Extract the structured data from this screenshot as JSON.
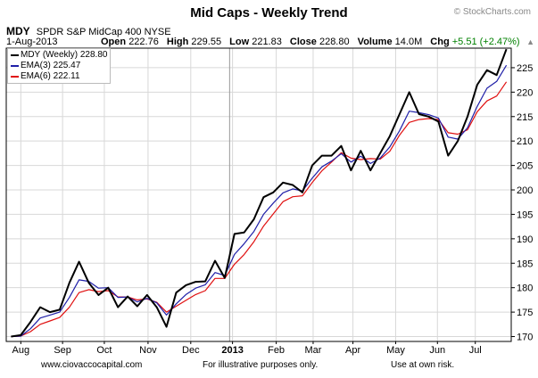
{
  "header": {
    "title": "Mid Caps - Weekly Trend",
    "copyright": "© StockCharts.com",
    "symbol": "MDY",
    "description": "SPDR S&P MidCap 400",
    "exchange": "NYSE",
    "date": "1-Aug-2013",
    "open_label": "Open",
    "open": "222.76",
    "high_label": "High",
    "high": "229.55",
    "low_label": "Low",
    "low": "221.83",
    "close_label": "Close",
    "close": "228.80",
    "volume_label": "Volume",
    "volume": "14.0M",
    "chg_label": "Chg",
    "chg": "+5.51 (+2.47%)",
    "chg_color": "#008000",
    "chg_icon": "triangle-up-icon"
  },
  "legend": {
    "mdy": "MDY (Weekly) 228.80",
    "ema3": "EMA(3) 225.47",
    "ema6": "EMA(6) 222.11"
  },
  "footer": {
    "left": "www.ciovaccocapital.com",
    "center": "For illustrative purposes only.",
    "right": "Use at own risk."
  },
  "chart_data": {
    "type": "line",
    "ylim": [
      169,
      229
    ],
    "yticks": [
      170,
      175,
      180,
      185,
      190,
      195,
      200,
      205,
      210,
      215,
      220,
      225
    ],
    "grid": true,
    "y_axis_side": "right",
    "legend_position": "top-left",
    "x_range": [
      0,
      52
    ],
    "x_ticks": [
      {
        "label": "Aug",
        "x": 1.5
      },
      {
        "label": "Sep",
        "x": 5.8
      },
      {
        "label": "Oct",
        "x": 10.1
      },
      {
        "label": "Nov",
        "x": 14.6
      },
      {
        "label": "Dec",
        "x": 19.0
      },
      {
        "label": "2013",
        "x": 23.3,
        "bold": true
      },
      {
        "label": "Feb",
        "x": 27.8
      },
      {
        "label": "Mar",
        "x": 31.6
      },
      {
        "label": "Apr",
        "x": 35.7
      },
      {
        "label": "May",
        "x": 40.1
      },
      {
        "label": "Jun",
        "x": 44.4
      },
      {
        "label": "Jul",
        "x": 48.3
      }
    ],
    "year_divider_x": 23.0,
    "series": [
      {
        "name": "MDY (Weekly)",
        "color": "#000000",
        "values": [
          170.0,
          170.3,
          173.0,
          176.0,
          175.0,
          175.5,
          181.0,
          185.3,
          181.0,
          178.5,
          180.0,
          176.0,
          178.2,
          176.2,
          178.5,
          176.0,
          172.0,
          179.0,
          180.5,
          181.2,
          181.3,
          185.5,
          182.0,
          191.0,
          191.3,
          194.0,
          198.5,
          199.5,
          201.5,
          201.0,
          199.5,
          205.0,
          207.0,
          207.0,
          209.0,
          204.0,
          208.0,
          204.0,
          207.5,
          211.0,
          215.5,
          220.0,
          215.5,
          215.0,
          214.0,
          207.0,
          210.0,
          215.0,
          221.5,
          224.5,
          223.5,
          228.8
        ]
      },
      {
        "name": "EMA(3)",
        "color": "#1f1fa8",
        "values": [
          170.0,
          170.1,
          171.6,
          173.8,
          174.4,
          175.0,
          178.0,
          181.6,
          181.3,
          179.9,
          180.0,
          178.0,
          178.1,
          177.1,
          177.8,
          176.9,
          174.4,
          176.7,
          178.6,
          179.9,
          180.6,
          183.1,
          182.5,
          186.8,
          189.0,
          191.5,
          195.0,
          197.3,
          199.4,
          200.2,
          199.8,
          202.4,
          204.7,
          205.9,
          207.4,
          205.7,
          206.9,
          205.4,
          206.5,
          208.8,
          212.1,
          216.1,
          215.8,
          215.4,
          214.7,
          210.8,
          210.4,
          212.7,
          217.1,
          220.8,
          222.2,
          225.5
        ]
      },
      {
        "name": "EMA(6)",
        "color": "#e01010",
        "values": [
          170.0,
          170.1,
          171.0,
          172.5,
          173.2,
          173.9,
          176.0,
          179.0,
          179.6,
          179.2,
          179.4,
          178.1,
          178.1,
          177.5,
          177.7,
          177.0,
          175.0,
          176.2,
          177.4,
          178.6,
          179.4,
          181.9,
          181.9,
          184.8,
          186.8,
          189.4,
          192.6,
          195.1,
          197.6,
          198.6,
          198.8,
          201.5,
          203.9,
          205.7,
          207.6,
          206.5,
          206.2,
          206.4,
          206.3,
          207.9,
          211.2,
          213.8,
          214.4,
          214.6,
          214.4,
          211.7,
          211.4,
          212.3,
          216.0,
          218.2,
          219.2,
          222.1
        ]
      }
    ]
  }
}
